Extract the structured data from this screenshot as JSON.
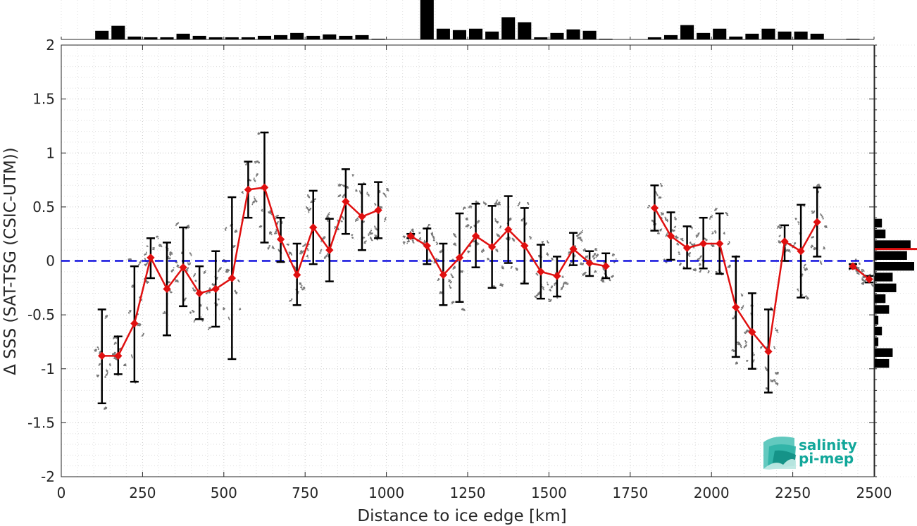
{
  "chart_data": {
    "type": "line",
    "xlabel": "Distance to ice edge [km]",
    "ylabel": "Δ SSS (SAT-TSG (CSIC-UTM))",
    "xlim": [
      0,
      2500
    ],
    "ylim": [
      -2,
      2
    ],
    "xticks": [
      0,
      250,
      500,
      750,
      1000,
      1250,
      1500,
      1750,
      2000,
      2250,
      2500
    ],
    "yticks": [
      -2,
      -1.5,
      -1,
      -0.5,
      0,
      0.5,
      1,
      1.5,
      2
    ],
    "grid": true,
    "zero_line": {
      "y": 0,
      "color": "#1010dd",
      "style": "dashed"
    },
    "series": [
      {
        "color": "#e01010",
        "points": [
          {
            "x": 125,
            "y": -0.88,
            "lo": -1.32,
            "hi": -0.45
          },
          {
            "x": 175,
            "y": -0.88,
            "lo": -1.05,
            "hi": -0.7
          },
          {
            "x": 225,
            "y": -0.58,
            "lo": -1.12,
            "hi": -0.05
          },
          {
            "x": 275,
            "y": 0.03,
            "lo": -0.16,
            "hi": 0.21
          },
          {
            "x": 325,
            "y": -0.26,
            "lo": -0.69,
            "hi": 0.17
          },
          {
            "x": 375,
            "y": -0.06,
            "lo": -0.42,
            "hi": 0.31
          },
          {
            "x": 425,
            "y": -0.3,
            "lo": -0.54,
            "hi": -0.05
          },
          {
            "x": 475,
            "y": -0.26,
            "lo": -0.61,
            "hi": 0.09
          },
          {
            "x": 525,
            "y": -0.16,
            "lo": -0.91,
            "hi": 0.59
          },
          {
            "x": 575,
            "y": 0.66,
            "lo": 0.4,
            "hi": 0.92
          },
          {
            "x": 625,
            "y": 0.68,
            "lo": 0.17,
            "hi": 1.19
          },
          {
            "x": 675,
            "y": 0.2,
            "lo": -0.01,
            "hi": 0.4
          },
          {
            "x": 725,
            "y": -0.13,
            "lo": -0.41,
            "hi": 0.16
          },
          {
            "x": 775,
            "y": 0.31,
            "lo": -0.03,
            "hi": 0.65
          },
          {
            "x": 825,
            "y": 0.1,
            "lo": -0.19,
            "hi": 0.39
          },
          {
            "x": 875,
            "y": 0.55,
            "lo": 0.25,
            "hi": 0.85
          },
          {
            "x": 925,
            "y": 0.41,
            "lo": 0.1,
            "hi": 0.71
          },
          {
            "x": 975,
            "y": 0.47,
            "lo": 0.21,
            "hi": 0.73
          },
          {
            "x": 1075,
            "y": 0.23,
            "lo": 0.21,
            "hi": 0.25
          },
          {
            "x": 1125,
            "y": 0.14,
            "lo": -0.03,
            "hi": 0.3
          },
          {
            "x": 1175,
            "y": -0.13,
            "lo": -0.41,
            "hi": 0.16
          },
          {
            "x": 1225,
            "y": 0.03,
            "lo": -0.38,
            "hi": 0.44
          },
          {
            "x": 1275,
            "y": 0.23,
            "lo": -0.06,
            "hi": 0.53
          },
          {
            "x": 1325,
            "y": 0.13,
            "lo": -0.25,
            "hi": 0.51
          },
          {
            "x": 1375,
            "y": 0.29,
            "lo": -0.02,
            "hi": 0.6
          },
          {
            "x": 1425,
            "y": 0.14,
            "lo": -0.21,
            "hi": 0.49
          },
          {
            "x": 1475,
            "y": -0.1,
            "lo": -0.35,
            "hi": 0.15
          },
          {
            "x": 1525,
            "y": -0.14,
            "lo": -0.33,
            "hi": 0.04
          },
          {
            "x": 1575,
            "y": 0.11,
            "lo": -0.04,
            "hi": 0.26
          },
          {
            "x": 1625,
            "y": -0.02,
            "lo": -0.14,
            "hi": 0.09
          },
          {
            "x": 1675,
            "y": -0.05,
            "lo": -0.16,
            "hi": 0.07
          },
          {
            "x": 1825,
            "y": 0.49,
            "lo": 0.28,
            "hi": 0.7
          },
          {
            "x": 1875,
            "y": 0.23,
            "lo": 0.01,
            "hi": 0.45
          },
          {
            "x": 1925,
            "y": 0.12,
            "lo": -0.07,
            "hi": 0.32
          },
          {
            "x": 1975,
            "y": 0.16,
            "lo": -0.07,
            "hi": 0.4
          },
          {
            "x": 2025,
            "y": 0.16,
            "lo": -0.12,
            "hi": 0.44
          },
          {
            "x": 2075,
            "y": -0.43,
            "lo": -0.89,
            "hi": 0.04
          },
          {
            "x": 2125,
            "y": -0.66,
            "lo": -1.0,
            "hi": -0.3
          },
          {
            "x": 2175,
            "y": -0.84,
            "lo": -1.22,
            "hi": -0.45
          },
          {
            "x": 2225,
            "y": 0.18,
            "lo": 0.0,
            "hi": 0.33
          },
          {
            "x": 2275,
            "y": 0.09,
            "lo": -0.34,
            "hi": 0.52
          },
          {
            "x": 2325,
            "y": 0.36,
            "lo": 0.04,
            "hi": 0.68
          },
          {
            "x": 2435,
            "y": -0.05,
            "lo": -0.07,
            "hi": -0.03
          },
          {
            "x": 2485,
            "y": -0.17,
            "lo": -0.2,
            "hi": -0.14
          }
        ]
      }
    ],
    "top_histogram": {
      "bin_width": 50,
      "bins": [
        {
          "x": 125,
          "v": 12
        },
        {
          "x": 175,
          "v": 19
        },
        {
          "x": 225,
          "v": 4
        },
        {
          "x": 275,
          "v": 3
        },
        {
          "x": 325,
          "v": 3
        },
        {
          "x": 375,
          "v": 8
        },
        {
          "x": 425,
          "v": 5
        },
        {
          "x": 475,
          "v": 3
        },
        {
          "x": 525,
          "v": 3
        },
        {
          "x": 575,
          "v": 3
        },
        {
          "x": 625,
          "v": 5
        },
        {
          "x": 675,
          "v": 6
        },
        {
          "x": 725,
          "v": 9
        },
        {
          "x": 775,
          "v": 5
        },
        {
          "x": 825,
          "v": 7
        },
        {
          "x": 875,
          "v": 5
        },
        {
          "x": 925,
          "v": 6
        },
        {
          "x": 975,
          "v": 1
        },
        {
          "x": 1125,
          "v": 55
        },
        {
          "x": 1175,
          "v": 15
        },
        {
          "x": 1225,
          "v": 13
        },
        {
          "x": 1275,
          "v": 15
        },
        {
          "x": 1325,
          "v": 11
        },
        {
          "x": 1375,
          "v": 31
        },
        {
          "x": 1425,
          "v": 24
        },
        {
          "x": 1475,
          "v": 3
        },
        {
          "x": 1525,
          "v": 9
        },
        {
          "x": 1575,
          "v": 14
        },
        {
          "x": 1625,
          "v": 12
        },
        {
          "x": 1675,
          "v": 1
        },
        {
          "x": 1825,
          "v": 3
        },
        {
          "x": 1875,
          "v": 6
        },
        {
          "x": 1925,
          "v": 20
        },
        {
          "x": 1975,
          "v": 9
        },
        {
          "x": 2025,
          "v": 15
        },
        {
          "x": 2075,
          "v": 4
        },
        {
          "x": 2125,
          "v": 8
        },
        {
          "x": 2175,
          "v": 15
        },
        {
          "x": 2225,
          "v": 11
        },
        {
          "x": 2275,
          "v": 11
        },
        {
          "x": 2325,
          "v": 8
        },
        {
          "x": 2435,
          "v": 1
        }
      ]
    },
    "right_histogram": {
      "bin_width": 0.1,
      "mean_line": {
        "y": 0.11,
        "color": "#e01010"
      },
      "bins": [
        {
          "y": 0.35,
          "v": 2
        },
        {
          "y": 0.25,
          "v": 3
        },
        {
          "y": 0.15,
          "v": 10
        },
        {
          "y": 0.05,
          "v": 9
        },
        {
          "y": -0.05,
          "v": 11
        },
        {
          "y": -0.15,
          "v": 5
        },
        {
          "y": -0.25,
          "v": 6
        },
        {
          "y": -0.35,
          "v": 3
        },
        {
          "y": -0.45,
          "v": 4
        },
        {
          "y": -0.55,
          "v": 1
        },
        {
          "y": -0.65,
          "v": 2
        },
        {
          "y": -0.75,
          "v": 1
        },
        {
          "y": -0.85,
          "v": 5
        },
        {
          "y": -0.95,
          "v": 4
        }
      ]
    }
  },
  "logo": {
    "line1": "salinity",
    "line2": "pi-mep",
    "color": "#12a79a"
  }
}
